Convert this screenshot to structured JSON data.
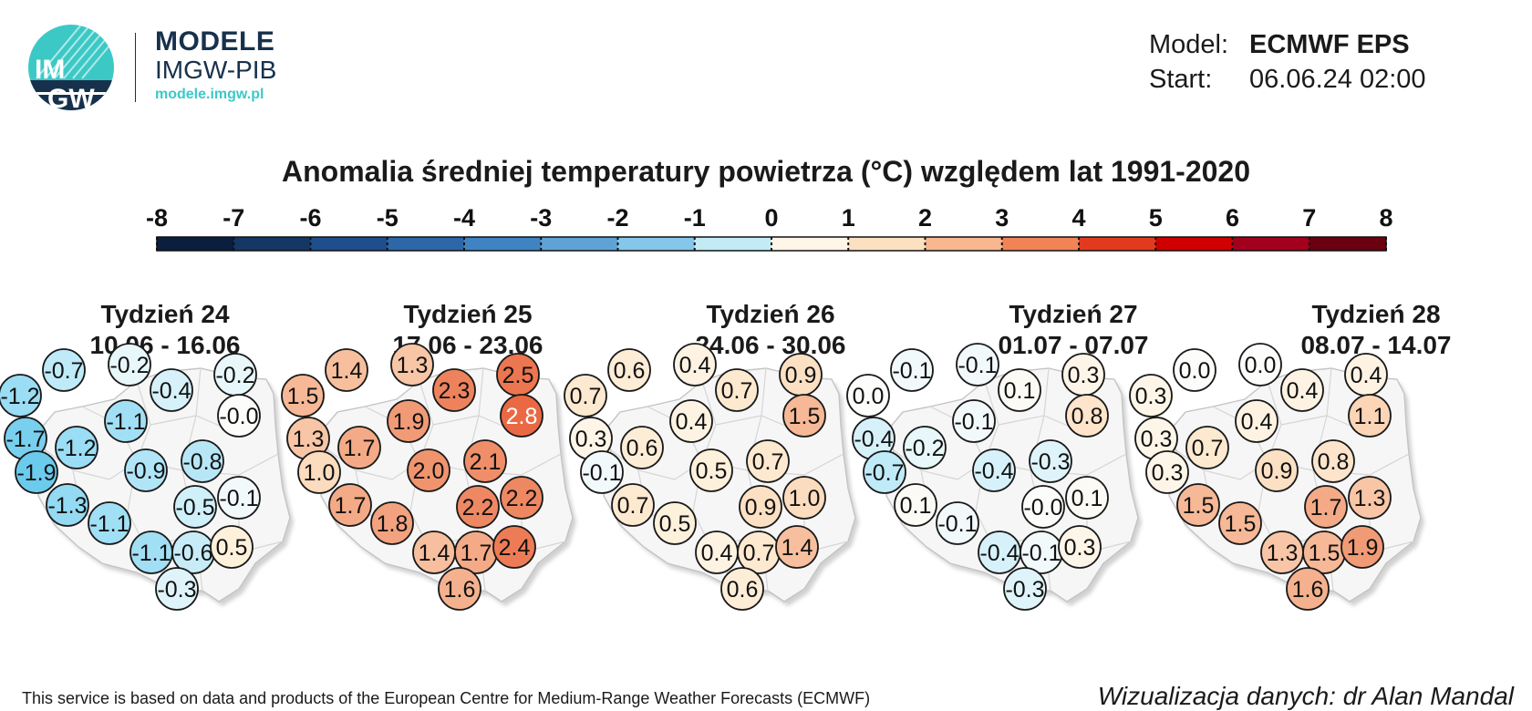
{
  "header": {
    "brand_title": "MODELE",
    "brand_subtitle": "IMGW-PIB",
    "brand_url": "modele.imgw.pl",
    "logo_text_top": "IM",
    "logo_text_bottom": "GW",
    "model_label": "Model:",
    "model_value": "ECMWF EPS",
    "start_label": "Start:",
    "start_value": "06.06.24 02:00"
  },
  "title": "Anomalia średniej temperatury powietrza (°C) względem lat 1991-2020",
  "scale": {
    "ticks": [
      "-8",
      "-7",
      "-6",
      "-5",
      "-4",
      "-3",
      "-2",
      "-1",
      "0",
      "1",
      "2",
      "3",
      "4",
      "5",
      "6",
      "7",
      "8"
    ],
    "colors": [
      "#0b1e3d",
      "#143766",
      "#1f4e8c",
      "#2d67a8",
      "#3f83c2",
      "#5fa3d6",
      "#84c7ea",
      "#c2ebf6",
      "#fff6e8",
      "#fce1c0",
      "#f8b78f",
      "#f18357",
      "#e23a1f",
      "#d10000",
      "#a3001e",
      "#6a0010"
    ]
  },
  "weeks": [
    {
      "week": "Tydzień 24",
      "dates": "10.06 - 16.06",
      "values": [
        "-1.2",
        "-0.7",
        "-0.2",
        "-0.4",
        "-0.2",
        "-0.0",
        "-1.7",
        "-1.2",
        "-1.1",
        "-1.9",
        "-0.9",
        "-0.8",
        "-1.3",
        "-0.5",
        "-0.1",
        "-1.1",
        "-1.1",
        "-0.6",
        "0.5",
        "-0.3"
      ]
    },
    {
      "week": "Tydzień 25",
      "dates": "17.06 - 23.06",
      "values": [
        "1.5",
        "1.4",
        "1.3",
        "2.3",
        "2.5",
        "2.8",
        "1.3",
        "1.7",
        "1.9",
        "1.0",
        "2.0",
        "2.1",
        "1.7",
        "2.2",
        "2.2",
        "1.8",
        "1.4",
        "1.7",
        "2.4",
        "1.6"
      ]
    },
    {
      "week": "Tydzień 26",
      "dates": "24.06 - 30.06",
      "values": [
        "0.7",
        "0.6",
        "0.4",
        "0.7",
        "0.9",
        "1.5",
        "0.3",
        "0.6",
        "0.4",
        "-0.1",
        "0.5",
        "0.7",
        "0.7",
        "0.9",
        "1.0",
        "0.5",
        "0.4",
        "0.7",
        "1.4",
        "0.6"
      ]
    },
    {
      "week": "Tydzień 27",
      "dates": "01.07 - 07.07",
      "values": [
        "0.0",
        "-0.1",
        "-0.1",
        "0.1",
        "0.3",
        "0.8",
        "-0.4",
        "-0.2",
        "-0.1",
        "-0.7",
        "-0.4",
        "-0.3",
        "0.1",
        "-0.0",
        "0.1",
        "-0.1",
        "-0.4",
        "-0.1",
        "0.3",
        "-0.3"
      ]
    },
    {
      "week": "Tydzień 28",
      "dates": "08.07 - 14.07",
      "values": [
        "0.3",
        "0.0",
        "0.0",
        "0.4",
        "0.4",
        "1.1",
        "0.3",
        "0.7",
        "0.4",
        "0.3",
        "0.9",
        "0.8",
        "1.5",
        "1.7",
        "1.3",
        "1.5",
        "1.3",
        "1.5",
        "1.9",
        "1.6"
      ]
    }
  ],
  "footer": {
    "credit": "This service is based on data and products of the European Centre for Medium-Range Weather Forecasts (ECMWF)",
    "author": "Wizualizacja danych: dr Alan Mandal"
  }
}
